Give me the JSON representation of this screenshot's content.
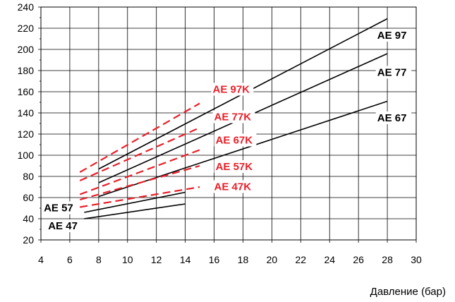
{
  "chart_data": {
    "type": "line",
    "title": "",
    "xlabel": "Давление (бар)",
    "ylabel": "",
    "xlim": [
      4,
      30
    ],
    "ylim": [
      20,
      240
    ],
    "xticks": [
      "4",
      "6",
      "8",
      "10",
      "12",
      "14",
      "16",
      "18",
      "20",
      "22",
      "24",
      "26",
      "28",
      "30"
    ],
    "yticks": [
      "20",
      "40",
      "60",
      "80",
      "100",
      "120",
      "140",
      "160",
      "180",
      "200",
      "220",
      "240"
    ],
    "grid": true,
    "colors": {
      "solid": "#000000",
      "dashed": "#e8202a"
    },
    "series": [
      {
        "name": "AE 97",
        "style": "solid",
        "points": [
          [
            8,
            87
          ],
          [
            28,
            229
          ]
        ]
      },
      {
        "name": "AE 77",
        "style": "solid",
        "points": [
          [
            8,
            74
          ],
          [
            28,
            196
          ]
        ]
      },
      {
        "name": "AE 67",
        "style": "solid",
        "points": [
          [
            8,
            61
          ],
          [
            28,
            151
          ]
        ]
      },
      {
        "name": "AE 57",
        "style": "solid",
        "points": [
          [
            7,
            46
          ],
          [
            14,
            65
          ]
        ]
      },
      {
        "name": "AE 47",
        "style": "solid",
        "points": [
          [
            7,
            40
          ],
          [
            14,
            54
          ]
        ]
      },
      {
        "name": "AE 97K",
        "style": "dashed",
        "points": [
          [
            6.7,
            84
          ],
          [
            15,
            149
          ]
        ]
      },
      {
        "name": "AE 77K",
        "style": "dashed",
        "points": [
          [
            6.7,
            76
          ],
          [
            15,
            126
          ]
        ]
      },
      {
        "name": "AE 67K",
        "style": "dashed",
        "points": [
          [
            6.7,
            63
          ],
          [
            15,
            105
          ]
        ]
      },
      {
        "name": "AE 57K",
        "style": "dashed",
        "points": [
          [
            6.7,
            58
          ],
          [
            15,
            90
          ]
        ]
      },
      {
        "name": "AE 47K",
        "style": "dashed",
        "points": [
          [
            6.7,
            51
          ],
          [
            15,
            70
          ]
        ]
      }
    ],
    "labels": [
      {
        "text": "AE 97",
        "x": 27.3,
        "y": 210,
        "color": "#000000"
      },
      {
        "text": "AE 77",
        "x": 27.3,
        "y": 175,
        "color": "#000000"
      },
      {
        "text": "AE 67",
        "x": 27.3,
        "y": 132,
        "color": "#000000"
      },
      {
        "text": "AE 57",
        "x": 4.2,
        "y": 47,
        "color": "#000000"
      },
      {
        "text": "AE 47",
        "x": 4.5,
        "y": 30,
        "color": "#000000"
      },
      {
        "text": "AE 97K",
        "x": 15.9,
        "y": 159,
        "color": "#e8202a"
      },
      {
        "text": "AE 77K",
        "x": 16.0,
        "y": 133,
        "color": "#e8202a"
      },
      {
        "text": "AE 67K",
        "x": 16.1,
        "y": 111,
        "color": "#e8202a"
      },
      {
        "text": "AE 57K",
        "x": 16.1,
        "y": 86,
        "color": "#e8202a"
      },
      {
        "text": "AE 47K",
        "x": 16.0,
        "y": 67,
        "color": "#e8202a"
      }
    ]
  }
}
